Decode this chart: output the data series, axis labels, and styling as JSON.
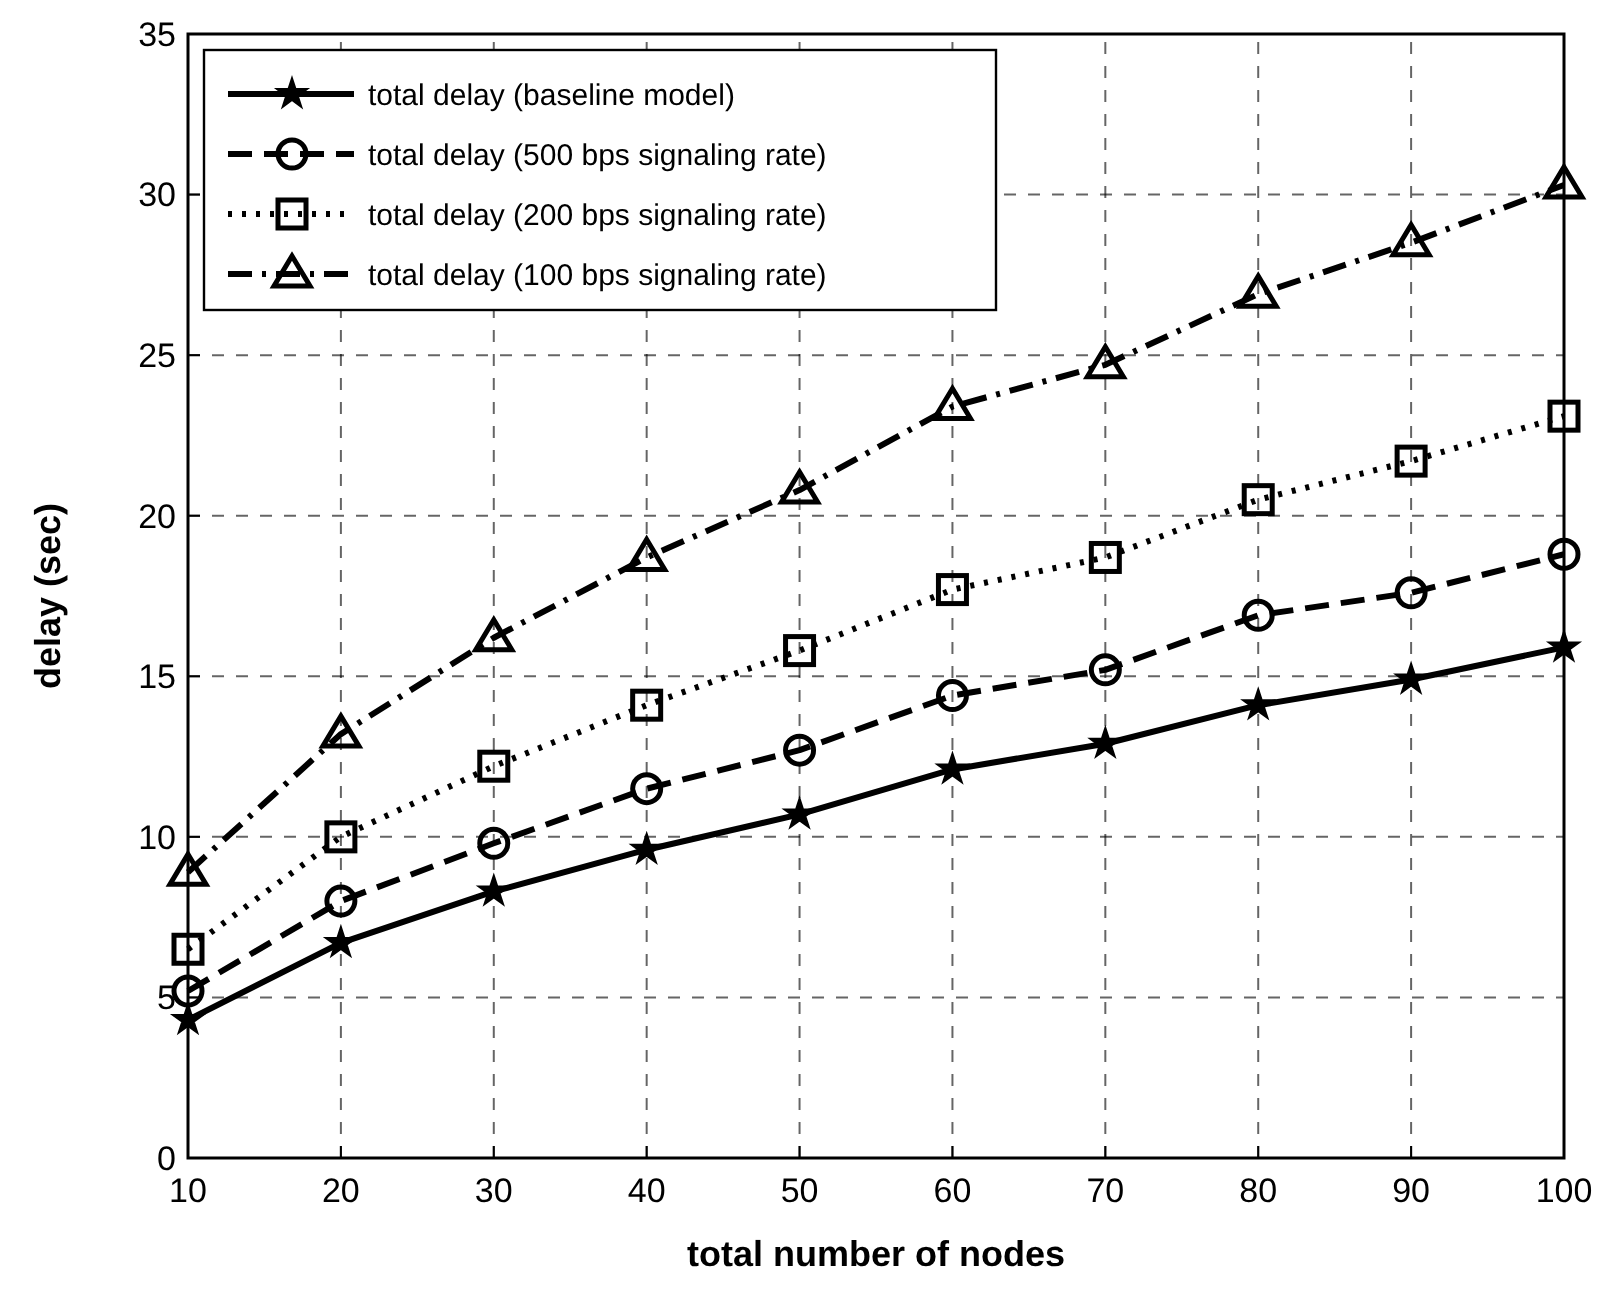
{
  "chart_data": {
    "type": "line",
    "xlabel": "total number of nodes",
    "ylabel": "delay (sec)",
    "x": [
      10,
      20,
      30,
      40,
      50,
      60,
      70,
      80,
      90,
      100
    ],
    "xlim": [
      10,
      100
    ],
    "xticks": [
      10,
      20,
      30,
      40,
      50,
      60,
      70,
      80,
      90,
      100
    ],
    "ylim": [
      0,
      35
    ],
    "yticks": [
      0,
      5,
      10,
      15,
      20,
      25,
      30,
      35
    ],
    "grid": true,
    "legend": "top left",
    "series": [
      {
        "name": "total delay (baseline model)",
        "color": "#000000",
        "marker": "star",
        "line_style": "solid",
        "values": [
          4.3,
          6.7,
          8.3,
          9.6,
          10.7,
          12.1,
          12.9,
          14.1,
          14.9,
          15.9
        ]
      },
      {
        "name": "total delay (500 bps signaling rate)",
        "color": "#000000",
        "marker": "circle",
        "line_style": "dashed",
        "values": [
          5.2,
          8.0,
          9.8,
          11.5,
          12.7,
          14.4,
          15.2,
          16.9,
          17.6,
          18.8
        ]
      },
      {
        "name": "total delay (200 bps signaling rate)",
        "color": "#000000",
        "marker": "square",
        "line_style": "dotted",
        "values": [
          6.5,
          10.0,
          12.2,
          14.1,
          15.8,
          17.7,
          18.7,
          20.5,
          21.7,
          23.1
        ]
      },
      {
        "name": "total delay (100 bps signaling rate)",
        "color": "#000000",
        "marker": "triangle",
        "line_style": "dashdot",
        "values": [
          8.9,
          13.2,
          16.2,
          18.7,
          20.8,
          23.4,
          24.7,
          26.9,
          28.5,
          30.3
        ]
      }
    ]
  }
}
